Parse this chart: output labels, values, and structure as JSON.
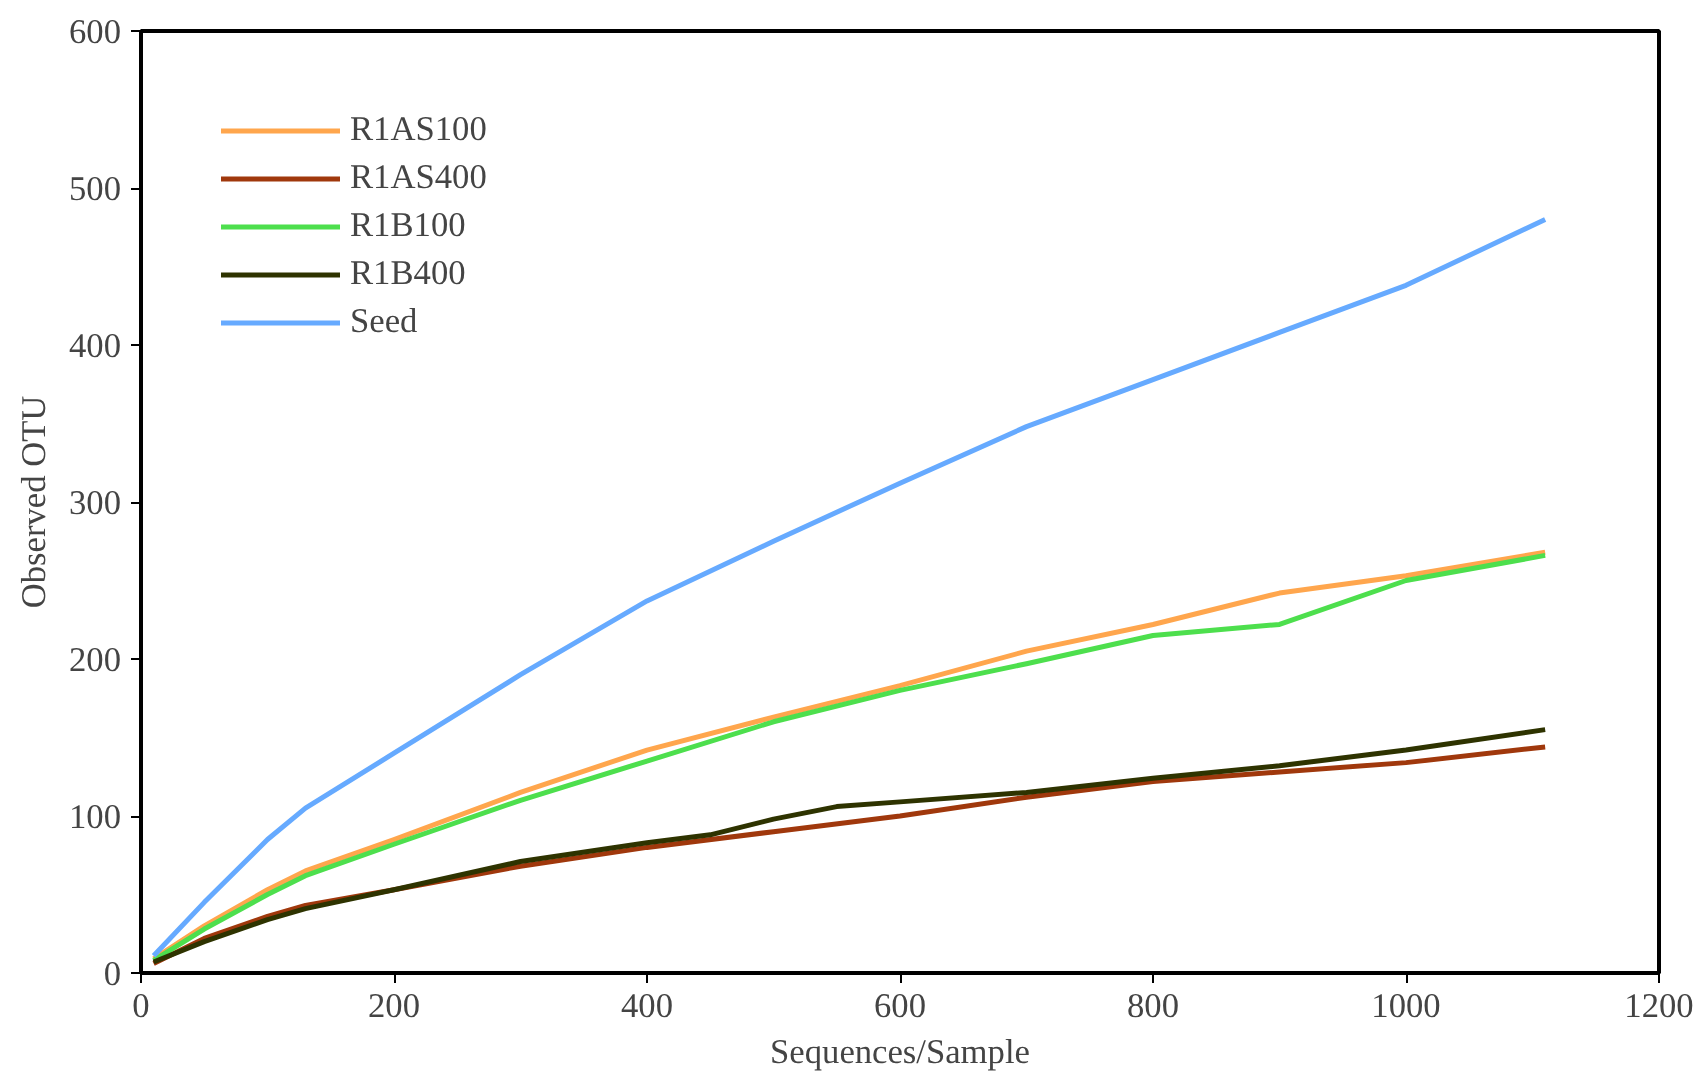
{
  "chart_data": {
    "type": "line",
    "xlabel": "Sequences/Sample",
    "ylabel": "Observed OTU",
    "xlim": [
      0,
      1200
    ],
    "xticks": [
      0,
      200,
      400,
      600,
      800,
      1000,
      1200
    ],
    "ylim": [
      0,
      600
    ],
    "yticks": [
      0,
      100,
      200,
      300,
      400,
      500,
      600
    ],
    "grid": false,
    "legend": "top left",
    "marker": "none",
    "line_style": "solid",
    "series": [
      {
        "name": "R1AS100",
        "color": "#ffa64d",
        "x": [
          10,
          50,
          100,
          130,
          200,
          300,
          400,
          500,
          600,
          700,
          800,
          900,
          1000,
          1110
        ],
        "values": [
          9,
          30,
          53,
          65,
          85,
          115,
          142,
          163,
          183,
          205,
          222,
          242,
          253,
          268
        ]
      },
      {
        "name": "R1AS400",
        "color": "#a0380c",
        "x": [
          10,
          50,
          100,
          130,
          200,
          300,
          400,
          500,
          600,
          700,
          800,
          900,
          1000,
          1110
        ],
        "values": [
          6,
          22,
          36,
          43,
          53,
          68,
          80,
          90,
          100,
          112,
          122,
          128,
          134,
          144
        ]
      },
      {
        "name": "R1B100",
        "color": "#4ddf4d",
        "x": [
          10,
          50,
          100,
          130,
          200,
          300,
          400,
          500,
          600,
          700,
          800,
          900,
          1000,
          1110
        ],
        "values": [
          8,
          28,
          50,
          62,
          82,
          110,
          135,
          160,
          180,
          197,
          215,
          222,
          250,
          266
        ]
      },
      {
        "name": "R1B400",
        "color": "#2e3300",
        "x": [
          10,
          50,
          100,
          130,
          200,
          300,
          400,
          450,
          500,
          550,
          600,
          700,
          800,
          900,
          1000,
          1110
        ],
        "values": [
          7,
          20,
          34,
          41,
          53,
          71,
          83,
          88,
          98,
          106,
          109,
          115,
          124,
          132,
          142,
          155
        ]
      },
      {
        "name": "Seed",
        "color": "#66aaff",
        "x": [
          10,
          50,
          100,
          130,
          200,
          300,
          400,
          500,
          600,
          700,
          800,
          900,
          1000,
          1110
        ],
        "values": [
          11,
          45,
          85,
          105,
          140,
          190,
          237,
          275,
          312,
          348,
          378,
          408,
          438,
          480
        ]
      }
    ]
  }
}
